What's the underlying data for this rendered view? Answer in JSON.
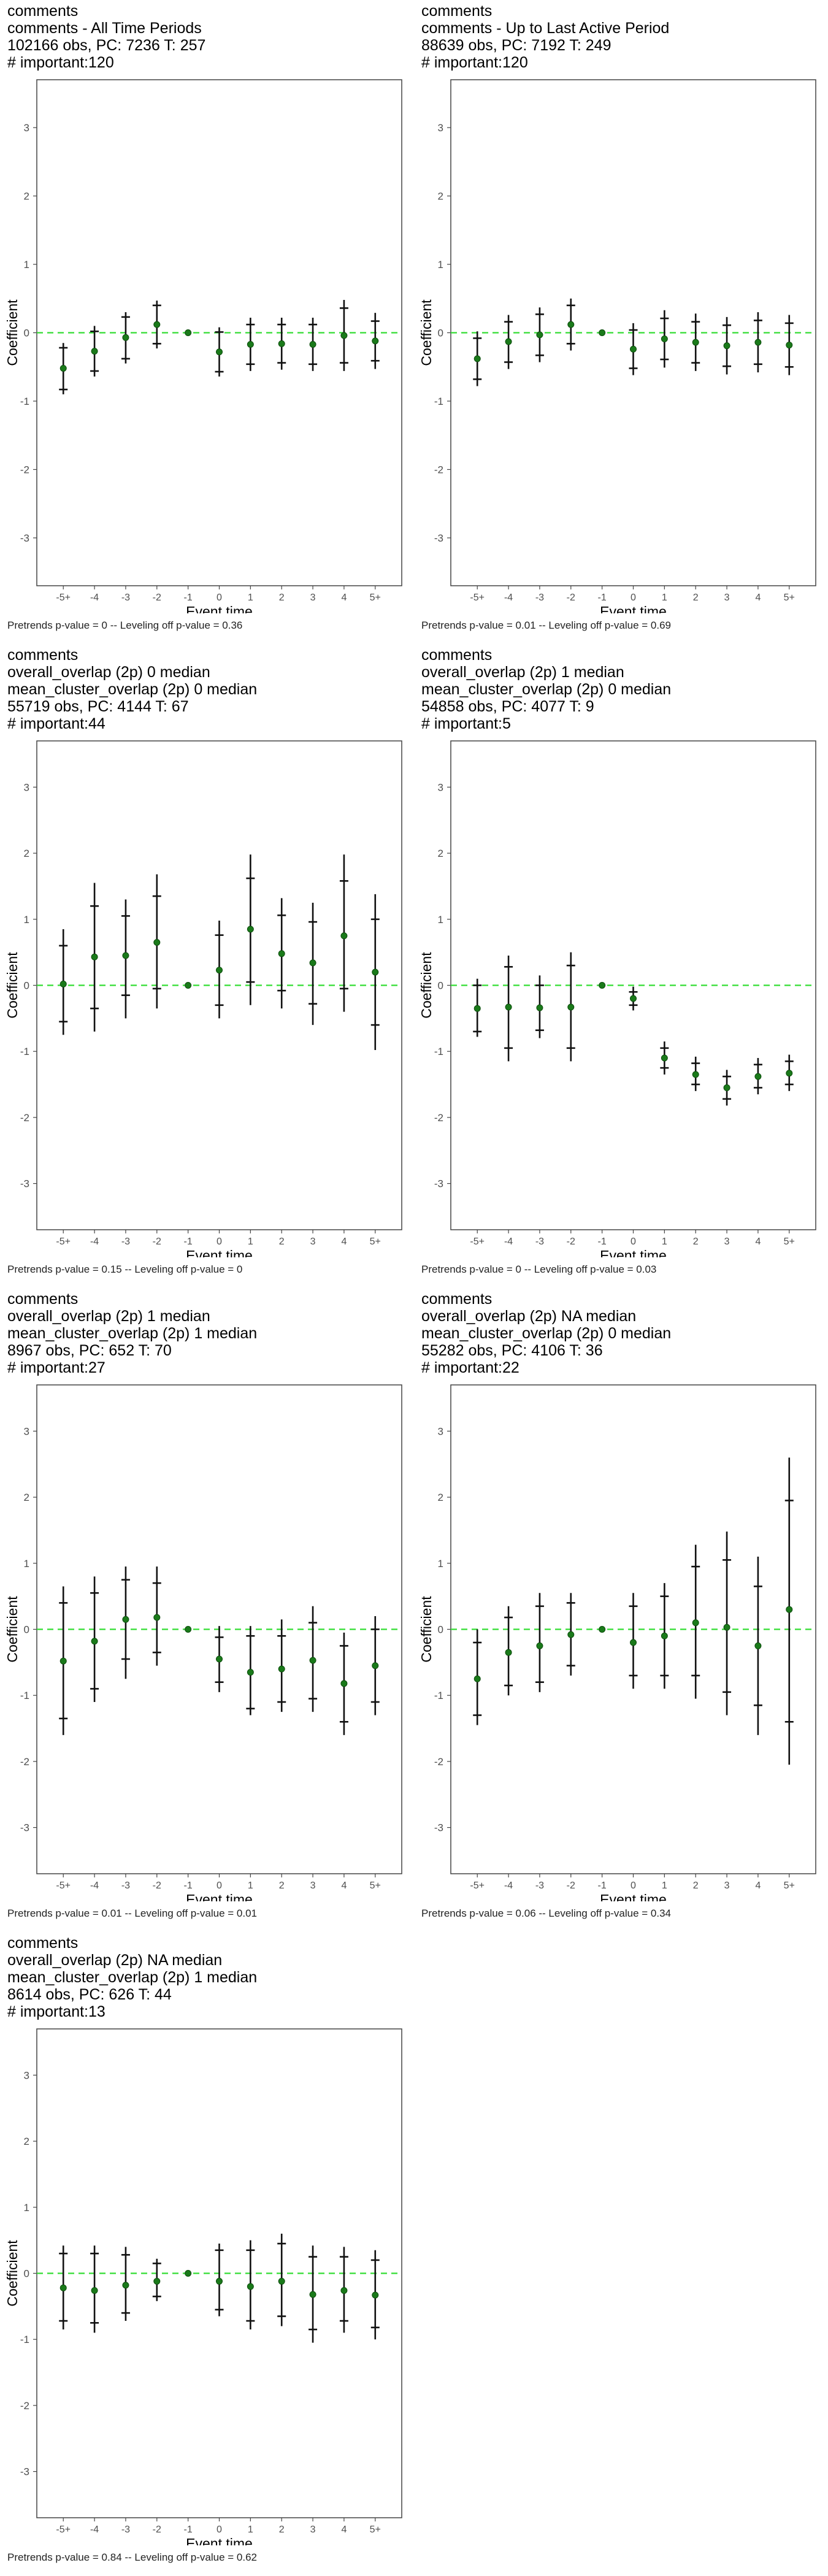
{
  "colors": {
    "zero_line": "#33dd33",
    "point": "#1a7a1a",
    "frame": "#444444",
    "tick_text": "#4d4d4d"
  },
  "chart_data": [
    {
      "type": "scatter",
      "title_lines": [
        "comments",
        "comments - All Time Periods",
        "102166 obs, PC: 7236 T: 257",
        "# important:120"
      ],
      "xlabel": "Event time",
      "ylabel": "Coefficient",
      "categories": [
        "-5+",
        "-4",
        "-3",
        "-2",
        "-1",
        "0",
        "1",
        "2",
        "3",
        "4",
        "5+"
      ],
      "yticks": [
        -3,
        -2,
        -1,
        0,
        1,
        2,
        3
      ],
      "ylim": [
        -3.7,
        3.7
      ],
      "values": [
        -0.52,
        -0.27,
        -0.07,
        0.12,
        0.0,
        -0.28,
        -0.17,
        -0.16,
        -0.17,
        -0.04,
        -0.12
      ],
      "ci_inner": [
        [
          -0.83,
          -0.22
        ],
        [
          -0.56,
          0.02
        ],
        [
          -0.38,
          0.23
        ],
        [
          -0.16,
          0.4
        ],
        [
          0,
          0
        ],
        [
          -0.57,
          0.01
        ],
        [
          -0.46,
          0.12
        ],
        [
          -0.44,
          0.12
        ],
        [
          -0.46,
          0.12
        ],
        [
          -0.44,
          0.36
        ],
        [
          -0.41,
          0.17
        ]
      ],
      "ci_outer": [
        [
          -0.9,
          -0.15
        ],
        [
          -0.64,
          0.1
        ],
        [
          -0.45,
          0.3
        ],
        [
          -0.23,
          0.47
        ],
        [
          0,
          0
        ],
        [
          -0.64,
          0.08
        ],
        [
          -0.56,
          0.22
        ],
        [
          -0.54,
          0.22
        ],
        [
          -0.56,
          0.22
        ],
        [
          -0.56,
          0.48
        ],
        [
          -0.53,
          0.29
        ]
      ],
      "footer": "Pretrends p-value = 0 -- Leveling off p-value = 0.36"
    },
    {
      "type": "scatter",
      "title_lines": [
        "comments",
        "comments - Up to Last Active Period",
        "88639 obs, PC: 7192 T: 249",
        "# important:120"
      ],
      "xlabel": "Event time",
      "ylabel": "Coefficient",
      "categories": [
        "-5+",
        "-4",
        "-3",
        "-2",
        "-1",
        "0",
        "1",
        "2",
        "3",
        "4",
        "5+"
      ],
      "yticks": [
        -3,
        -2,
        -1,
        0,
        1,
        2,
        3
      ],
      "ylim": [
        -3.7,
        3.7
      ],
      "values": [
        -0.38,
        -0.13,
        -0.03,
        0.12,
        0.0,
        -0.24,
        -0.09,
        -0.14,
        -0.19,
        -0.14,
        -0.18
      ],
      "ci_inner": [
        [
          -0.68,
          -0.08
        ],
        [
          -0.43,
          0.16
        ],
        [
          -0.33,
          0.27
        ],
        [
          -0.16,
          0.4
        ],
        [
          0,
          0
        ],
        [
          -0.52,
          0.04
        ],
        [
          -0.39,
          0.21
        ],
        [
          -0.44,
          0.16
        ],
        [
          -0.49,
          0.11
        ],
        [
          -0.46,
          0.18
        ],
        [
          -0.5,
          0.14
        ]
      ],
      "ci_outer": [
        [
          -0.78,
          0.02
        ],
        [
          -0.53,
          0.26
        ],
        [
          -0.43,
          0.37
        ],
        [
          -0.26,
          0.5
        ],
        [
          0,
          0
        ],
        [
          -0.62,
          0.14
        ],
        [
          -0.51,
          0.33
        ],
        [
          -0.56,
          0.28
        ],
        [
          -0.61,
          0.23
        ],
        [
          -0.58,
          0.3
        ],
        [
          -0.62,
          0.26
        ]
      ],
      "footer": "Pretrends p-value = 0.01 -- Leveling off p-value = 0.69"
    },
    {
      "type": "scatter",
      "title_lines": [
        "comments",
        "overall_overlap (2p) 0 median",
        "mean_cluster_overlap (2p) 0 median",
        "55719 obs, PC: 4144 T: 67",
        "# important:44"
      ],
      "xlabel": "Event time",
      "ylabel": "Coefficient",
      "categories": [
        "-5+",
        "-4",
        "-3",
        "-2",
        "-1",
        "0",
        "1",
        "2",
        "3",
        "4",
        "5+"
      ],
      "yticks": [
        -3,
        -2,
        -1,
        0,
        1,
        2,
        3
      ],
      "ylim": [
        -3.7,
        3.7
      ],
      "values": [
        0.02,
        0.43,
        0.45,
        0.65,
        0.0,
        0.23,
        0.85,
        0.48,
        0.34,
        0.75,
        0.2
      ],
      "ci_inner": [
        [
          -0.55,
          0.6
        ],
        [
          -0.35,
          1.2
        ],
        [
          -0.15,
          1.05
        ],
        [
          -0.05,
          1.35
        ],
        [
          0,
          0
        ],
        [
          -0.3,
          0.76
        ],
        [
          0.05,
          1.62
        ],
        [
          -0.08,
          1.06
        ],
        [
          -0.28,
          0.96
        ],
        [
          -0.05,
          1.58
        ],
        [
          -0.6,
          1.0
        ]
      ],
      "ci_outer": [
        [
          -0.75,
          0.85
        ],
        [
          -0.7,
          1.55
        ],
        [
          -0.5,
          1.3
        ],
        [
          -0.35,
          1.68
        ],
        [
          0,
          0
        ],
        [
          -0.5,
          0.98
        ],
        [
          -0.3,
          1.98
        ],
        [
          -0.35,
          1.32
        ],
        [
          -0.6,
          1.25
        ],
        [
          -0.4,
          1.98
        ],
        [
          -0.98,
          1.38
        ]
      ],
      "footer": "Pretrends p-value = 0.15 -- Leveling off p-value = 0"
    },
    {
      "type": "scatter",
      "title_lines": [
        "comments",
        "overall_overlap (2p) 1 median",
        "mean_cluster_overlap (2p) 0 median",
        "54858 obs, PC: 4077 T: 9",
        "# important:5"
      ],
      "xlabel": "Event time",
      "ylabel": "Coefficient",
      "categories": [
        "-5+",
        "-4",
        "-3",
        "-2",
        "-1",
        "0",
        "1",
        "2",
        "3",
        "4",
        "5+"
      ],
      "yticks": [
        -3,
        -2,
        -1,
        0,
        1,
        2,
        3
      ],
      "ylim": [
        -3.7,
        3.7
      ],
      "values": [
        -0.35,
        -0.33,
        -0.34,
        -0.33,
        0.0,
        -0.2,
        -1.1,
        -1.35,
        -1.55,
        -1.38,
        -1.33
      ],
      "ci_inner": [
        [
          -0.7,
          0.0
        ],
        [
          -0.95,
          0.28
        ],
        [
          -0.68,
          0.0
        ],
        [
          -0.95,
          0.3
        ],
        [
          0,
          0
        ],
        [
          -0.3,
          -0.1
        ],
        [
          -1.25,
          -0.95
        ],
        [
          -1.5,
          -1.18
        ],
        [
          -1.72,
          -1.38
        ],
        [
          -1.55,
          -1.2
        ],
        [
          -1.5,
          -1.15
        ]
      ],
      "ci_outer": [
        [
          -0.78,
          0.1
        ],
        [
          -1.15,
          0.45
        ],
        [
          -0.8,
          0.15
        ],
        [
          -1.15,
          0.5
        ],
        [
          0,
          0
        ],
        [
          -0.38,
          -0.02
        ],
        [
          -1.35,
          -0.85
        ],
        [
          -1.6,
          -1.08
        ],
        [
          -1.82,
          -1.28
        ],
        [
          -1.65,
          -1.1
        ],
        [
          -1.6,
          -1.05
        ]
      ],
      "footer": "Pretrends p-value = 0 -- Leveling off p-value = 0.03"
    },
    {
      "type": "scatter",
      "title_lines": [
        "comments",
        "overall_overlap (2p) 1 median",
        "mean_cluster_overlap (2p) 1 median",
        "8967 obs, PC: 652 T: 70",
        "# important:27"
      ],
      "xlabel": "Event time",
      "ylabel": "Coefficient",
      "categories": [
        "-5+",
        "-4",
        "-3",
        "-2",
        "-1",
        "0",
        "1",
        "2",
        "3",
        "4",
        "5+"
      ],
      "yticks": [
        -3,
        -2,
        -1,
        0,
        1,
        2,
        3
      ],
      "ylim": [
        -3.7,
        3.7
      ],
      "values": [
        -0.48,
        -0.18,
        0.15,
        0.18,
        0.0,
        -0.45,
        -0.65,
        -0.6,
        -0.47,
        -0.82,
        -0.55
      ],
      "ci_inner": [
        [
          -1.35,
          0.4
        ],
        [
          -0.9,
          0.55
        ],
        [
          -0.45,
          0.75
        ],
        [
          -0.35,
          0.7
        ],
        [
          0,
          0
        ],
        [
          -0.8,
          -0.12
        ],
        [
          -1.2,
          -0.1
        ],
        [
          -1.1,
          -0.1
        ],
        [
          -1.05,
          0.1
        ],
        [
          -1.4,
          -0.25
        ],
        [
          -1.1,
          0.0
        ]
      ],
      "ci_outer": [
        [
          -1.6,
          0.65
        ],
        [
          -1.1,
          0.8
        ],
        [
          -0.75,
          0.95
        ],
        [
          -0.55,
          0.95
        ],
        [
          0,
          0
        ],
        [
          -0.95,
          0.05
        ],
        [
          -1.3,
          0.05
        ],
        [
          -1.25,
          0.15
        ],
        [
          -1.25,
          0.35
        ],
        [
          -1.6,
          -0.05
        ],
        [
          -1.3,
          0.2
        ]
      ],
      "footer": "Pretrends p-value = 0.01 -- Leveling off p-value = 0.01"
    },
    {
      "type": "scatter",
      "title_lines": [
        "comments",
        "overall_overlap (2p) NA median",
        "mean_cluster_overlap (2p) 0 median",
        "55282 obs, PC: 4106 T: 36",
        "# important:22"
      ],
      "xlabel": "Event time",
      "ylabel": "Coefficient",
      "categories": [
        "-5+",
        "-4",
        "-3",
        "-2",
        "-1",
        "0",
        "1",
        "2",
        "3",
        "4",
        "5+"
      ],
      "yticks": [
        -3,
        -2,
        -1,
        0,
        1,
        2,
        3
      ],
      "ylim": [
        -3.7,
        3.7
      ],
      "values": [
        -0.75,
        -0.35,
        -0.25,
        -0.08,
        0.0,
        -0.2,
        -0.1,
        0.1,
        0.03,
        -0.25,
        0.3
      ],
      "ci_inner": [
        [
          -1.3,
          -0.2
        ],
        [
          -0.85,
          0.18
        ],
        [
          -0.8,
          0.35
        ],
        [
          -0.55,
          0.4
        ],
        [
          0,
          0
        ],
        [
          -0.7,
          0.35
        ],
        [
          -0.7,
          0.5
        ],
        [
          -0.7,
          0.95
        ],
        [
          -0.95,
          1.05
        ],
        [
          -1.15,
          0.65
        ],
        [
          -1.4,
          1.95
        ]
      ],
      "ci_outer": [
        [
          -1.45,
          0.0
        ],
        [
          -1.0,
          0.35
        ],
        [
          -0.95,
          0.55
        ],
        [
          -0.7,
          0.55
        ],
        [
          0,
          0
        ],
        [
          -0.9,
          0.55
        ],
        [
          -0.9,
          0.7
        ],
        [
          -1.05,
          1.28
        ],
        [
          -1.3,
          1.48
        ],
        [
          -1.6,
          1.1
        ],
        [
          -2.05,
          2.6
        ]
      ],
      "footer": "Pretrends p-value = 0.06 -- Leveling off p-value = 0.34"
    },
    {
      "type": "scatter",
      "title_lines": [
        "comments",
        "overall_overlap (2p) NA median",
        "mean_cluster_overlap (2p) 1 median",
        "8614 obs, PC: 626 T: 44",
        "# important:13"
      ],
      "xlabel": "Event time",
      "ylabel": "Coefficient",
      "categories": [
        "-5+",
        "-4",
        "-3",
        "-2",
        "-1",
        "0",
        "1",
        "2",
        "3",
        "4",
        "5+"
      ],
      "yticks": [
        -3,
        -2,
        -1,
        0,
        1,
        2,
        3
      ],
      "ylim": [
        -3.7,
        3.7
      ],
      "values": [
        -0.22,
        -0.26,
        -0.18,
        -0.12,
        0.0,
        -0.12,
        -0.2,
        -0.12,
        -0.32,
        -0.26,
        -0.33
      ],
      "ci_inner": [
        [
          -0.72,
          0.3
        ],
        [
          -0.75,
          0.3
        ],
        [
          -0.6,
          0.28
        ],
        [
          -0.35,
          0.15
        ],
        [
          0,
          0
        ],
        [
          -0.55,
          0.35
        ],
        [
          -0.72,
          0.35
        ],
        [
          -0.65,
          0.45
        ],
        [
          -0.85,
          0.25
        ],
        [
          -0.72,
          0.25
        ],
        [
          -0.82,
          0.2
        ]
      ],
      "ci_outer": [
        [
          -0.85,
          0.42
        ],
        [
          -0.9,
          0.42
        ],
        [
          -0.72,
          0.4
        ],
        [
          -0.42,
          0.22
        ],
        [
          0,
          0
        ],
        [
          -0.65,
          0.45
        ],
        [
          -0.85,
          0.5
        ],
        [
          -0.8,
          0.6
        ],
        [
          -1.05,
          0.42
        ],
        [
          -0.9,
          0.4
        ],
        [
          -1.0,
          0.35
        ]
      ],
      "footer": "Pretrends p-value = 0.84 -- Leveling off p-value = 0.62"
    }
  ]
}
